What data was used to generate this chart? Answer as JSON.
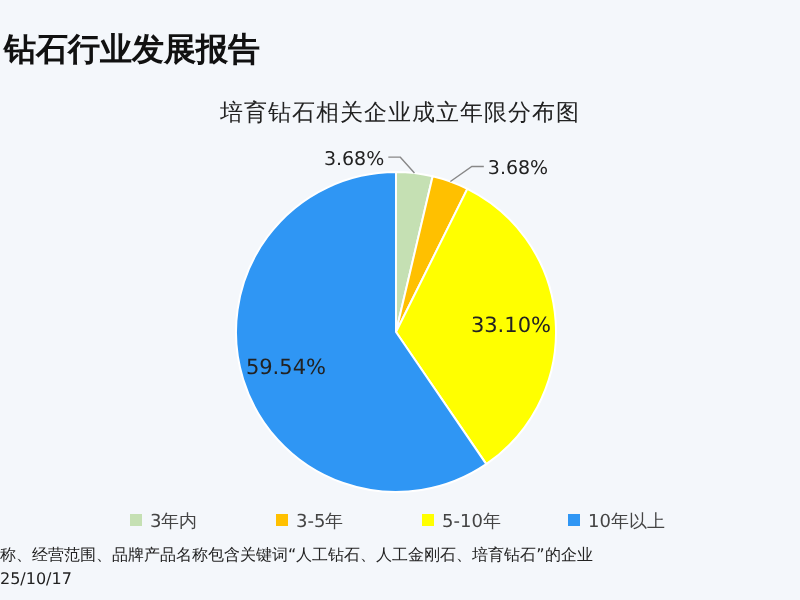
{
  "chart_data": {
    "type": "pie",
    "title": "钻石行业发展报告",
    "subtitle": "培育钻石相关企业成立年限分布图",
    "categories": [
      "3年内",
      "3-5年",
      "5-10年",
      "10年以上"
    ],
    "values": [
      3.68,
      3.68,
      33.1,
      59.54
    ],
    "value_labels": [
      "3.68%",
      "3.68%",
      "33.10%",
      "59.54%"
    ],
    "colors": [
      "#c5e0b3",
      "#ffc000",
      "#ffff00",
      "#2f96f4"
    ],
    "legend": "bottom",
    "annotations": [
      "称、经营范围、品牌产品名称包含关键词“人工钻石、人工金刚石、培育钻石”的企业",
      "25/10/17"
    ]
  }
}
